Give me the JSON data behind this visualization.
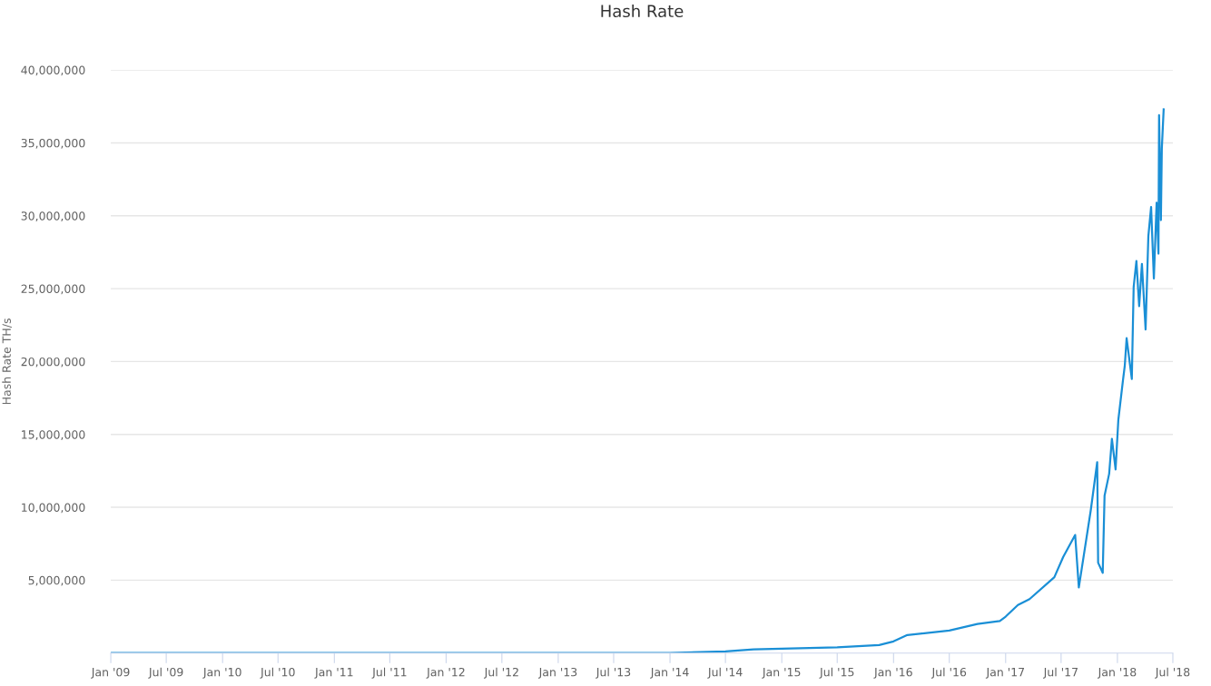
{
  "chart_data": {
    "type": "line",
    "title": "Hash Rate",
    "ylabel": "Hash Rate TH/s",
    "x": [
      "2009-01-03",
      "2010-01-01",
      "2011-01-01",
      "2012-01-01",
      "2013-01-01",
      "2013-07-01",
      "2014-01-01",
      "2014-07-01",
      "2014-10-01",
      "2015-01-01",
      "2015-07-01",
      "2015-11-15",
      "2016-01-01",
      "2016-02-15",
      "2016-07-01",
      "2016-10-01",
      "2016-12-13",
      "2017-01-01",
      "2017-02-10",
      "2017-03-20",
      "2017-06-09",
      "2017-07-08",
      "2017-08-16",
      "2017-08-28",
      "2017-10-06",
      "2017-10-27",
      "2017-10-30",
      "2017-11-14",
      "2017-11-20",
      "2017-12-05",
      "2017-12-14",
      "2017-12-26",
      "2018-01-04",
      "2018-01-19",
      "2018-01-25",
      "2018-01-31",
      "2018-02-17",
      "2018-02-23",
      "2018-03-04",
      "2018-03-13",
      "2018-03-22",
      "2018-04-03",
      "2018-04-12",
      "2018-04-21",
      "2018-04-30",
      "2018-05-09",
      "2018-05-15",
      "2018-05-17",
      "2018-05-23",
      "2018-05-26",
      "2018-06-01"
    ],
    "series": [
      {
        "color": "#1a8fd6",
        "values": [
          0,
          0,
          0,
          0,
          0,
          0,
          10000,
          120000,
          250000,
          300000,
          400000,
          550000,
          800000,
          1240000,
          1550000,
          2000000,
          2200000,
          2500000,
          3300000,
          3700000,
          5200000,
          6600000,
          8100000,
          4500000,
          9800000,
          13100000,
          6200000,
          5500000,
          10800000,
          12300000,
          14700000,
          12600000,
          16000000,
          18700000,
          19700000,
          21600000,
          18800000,
          25100000,
          26900000,
          23800000,
          26700000,
          22200000,
          28600000,
          30600000,
          25700000,
          30900000,
          27400000,
          36900000,
          29700000,
          34600000,
          37300000
        ]
      }
    ],
    "xlim": [
      "2009-01-01",
      "2018-07-01"
    ],
    "xticks": [
      {
        "value": "2009-01-01",
        "label": "Jan '09"
      },
      {
        "value": "2009-07-01",
        "label": "Jul '09"
      },
      {
        "value": "2010-01-01",
        "label": "Jan '10"
      },
      {
        "value": "2010-07-01",
        "label": "Jul '10"
      },
      {
        "value": "2011-01-01",
        "label": "Jan '11"
      },
      {
        "value": "2011-07-01",
        "label": "Jul '11"
      },
      {
        "value": "2012-01-01",
        "label": "Jan '12"
      },
      {
        "value": "2012-07-01",
        "label": "Jul '12"
      },
      {
        "value": "2013-01-01",
        "label": "Jan '13"
      },
      {
        "value": "2013-07-01",
        "label": "Jul '13"
      },
      {
        "value": "2014-01-01",
        "label": "Jan '14"
      },
      {
        "value": "2014-07-01",
        "label": "Jul '14"
      },
      {
        "value": "2015-01-01",
        "label": "Jan '15"
      },
      {
        "value": "2015-07-01",
        "label": "Jul '15"
      },
      {
        "value": "2016-01-01",
        "label": "Jan '16"
      },
      {
        "value": "2016-07-01",
        "label": "Jul '16"
      },
      {
        "value": "2017-01-01",
        "label": "Jan '17"
      },
      {
        "value": "2017-07-01",
        "label": "Jul '17"
      },
      {
        "value": "2018-01-01",
        "label": "Jan '18"
      },
      {
        "value": "2018-07-01",
        "label": "Jul '18"
      }
    ],
    "ylim": [
      0,
      40000000
    ],
    "yticks": [
      {
        "value": 5000000,
        "label": "5,000,000"
      },
      {
        "value": 10000000,
        "label": "10,000,000"
      },
      {
        "value": 15000000,
        "label": "15,000,000"
      },
      {
        "value": 20000000,
        "label": "20,000,000"
      },
      {
        "value": 25000000,
        "label": "25,000,000"
      },
      {
        "value": 30000000,
        "label": "30,000,000"
      },
      {
        "value": 35000000,
        "label": "35,000,000"
      },
      {
        "value": 40000000,
        "label": "40,000,000"
      }
    ],
    "grid": "y",
    "legend": false,
    "marker": "none",
    "line_style": "solid"
  }
}
